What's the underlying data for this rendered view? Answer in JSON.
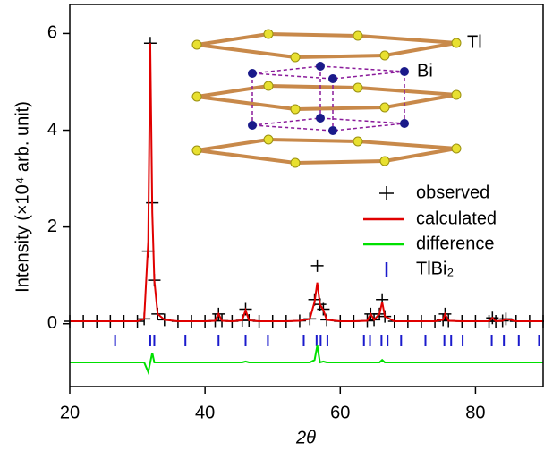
{
  "chart_data": {
    "type": "line",
    "x_label": "2θ",
    "y_label": "Intensity (×10⁴ arb. unit)",
    "annotations": [
      "Tl",
      "Bi"
    ],
    "x": [
      20,
      22,
      24,
      26,
      28,
      30,
      31,
      31.6,
      31.9,
      32.2,
      32.5,
      33,
      34,
      36,
      38,
      40,
      41.5,
      42,
      42.5,
      44,
      45.5,
      46,
      46.5,
      48,
      50,
      52,
      54,
      55.5,
      56.2,
      56.6,
      57,
      57.5,
      58,
      60,
      62,
      64,
      64.5,
      65,
      65.8,
      66.2,
      66.6,
      68,
      70,
      72,
      74,
      75.2,
      75.5,
      76,
      78,
      80,
      82,
      82.5,
      83,
      84,
      84.5,
      86,
      88,
      90
    ],
    "series": [
      {
        "name": "observed",
        "color": "#000000",
        "marker": "cross",
        "values": [
          0.05,
          0.05,
          0.05,
          0.05,
          0.05,
          0.05,
          0.1,
          1.5,
          5.8,
          2.5,
          0.9,
          0.2,
          0.08,
          0.05,
          0.05,
          0.05,
          0.06,
          0.2,
          0.06,
          0.05,
          0.07,
          0.3,
          0.07,
          0.05,
          0.05,
          0.05,
          0.06,
          0.1,
          0.5,
          1.2,
          0.4,
          0.3,
          0.08,
          0.05,
          0.05,
          0.06,
          0.2,
          0.08,
          0.2,
          0.5,
          0.15,
          0.05,
          0.05,
          0.05,
          0.05,
          0.08,
          0.2,
          0.06,
          0.05,
          0.05,
          0.05,
          0.12,
          0.05,
          0.06,
          0.1,
          0.05,
          0.05,
          0.05
        ]
      },
      {
        "name": "calculated",
        "color": "#e00000",
        "marker": "line",
        "values": [
          0.05,
          0.05,
          0.05,
          0.05,
          0.05,
          0.05,
          0.1,
          1.7,
          5.8,
          2.3,
          0.9,
          0.2,
          0.08,
          0.05,
          0.05,
          0.05,
          0.06,
          0.2,
          0.06,
          0.05,
          0.07,
          0.28,
          0.07,
          0.05,
          0.05,
          0.05,
          0.06,
          0.1,
          0.45,
          0.85,
          0.4,
          0.28,
          0.08,
          0.05,
          0.05,
          0.06,
          0.2,
          0.08,
          0.2,
          0.45,
          0.15,
          0.05,
          0.05,
          0.05,
          0.05,
          0.08,
          0.2,
          0.06,
          0.05,
          0.05,
          0.05,
          0.12,
          0.05,
          0.06,
          0.1,
          0.05,
          0.05,
          0.05
        ]
      },
      {
        "name": "difference",
        "color": "#00e000",
        "marker": "line",
        "values": [
          -0.8,
          -0.8,
          -0.8,
          -0.8,
          -0.8,
          -0.8,
          -0.8,
          -1.0,
          -0.8,
          -0.6,
          -0.8,
          -0.8,
          -0.8,
          -0.8,
          -0.8,
          -0.8,
          -0.8,
          -0.8,
          -0.8,
          -0.8,
          -0.8,
          -0.78,
          -0.8,
          -0.8,
          -0.8,
          -0.8,
          -0.8,
          -0.8,
          -0.75,
          -0.45,
          -0.8,
          -0.78,
          -0.8,
          -0.8,
          -0.8,
          -0.8,
          -0.8,
          -0.8,
          -0.8,
          -0.75,
          -0.8,
          -0.8,
          -0.8,
          -0.8,
          -0.8,
          -0.8,
          -0.8,
          -0.8,
          -0.8,
          -0.8,
          -0.8,
          -0.8,
          -0.8,
          -0.8,
          -0.8,
          -0.8,
          -0.8,
          -0.8
        ]
      }
    ],
    "reflections": {
      "name": "TlBi₂",
      "color": "#1a1acc",
      "x": [
        26.7,
        31.9,
        32.5,
        37.1,
        42,
        46,
        49.3,
        54.6,
        56.5,
        57.1,
        58.1,
        63.5,
        64.4,
        66.1,
        67,
        69,
        72.6,
        75.4,
        76.4,
        78.1,
        82.4,
        84.2,
        86.4,
        89.4
      ]
    },
    "xlim": [
      20,
      90
    ],
    "xticks": [
      20,
      40,
      60,
      80
    ],
    "ylim": [
      -1.3,
      6.6
    ],
    "yticks": [
      0,
      2,
      4,
      6
    ]
  }
}
